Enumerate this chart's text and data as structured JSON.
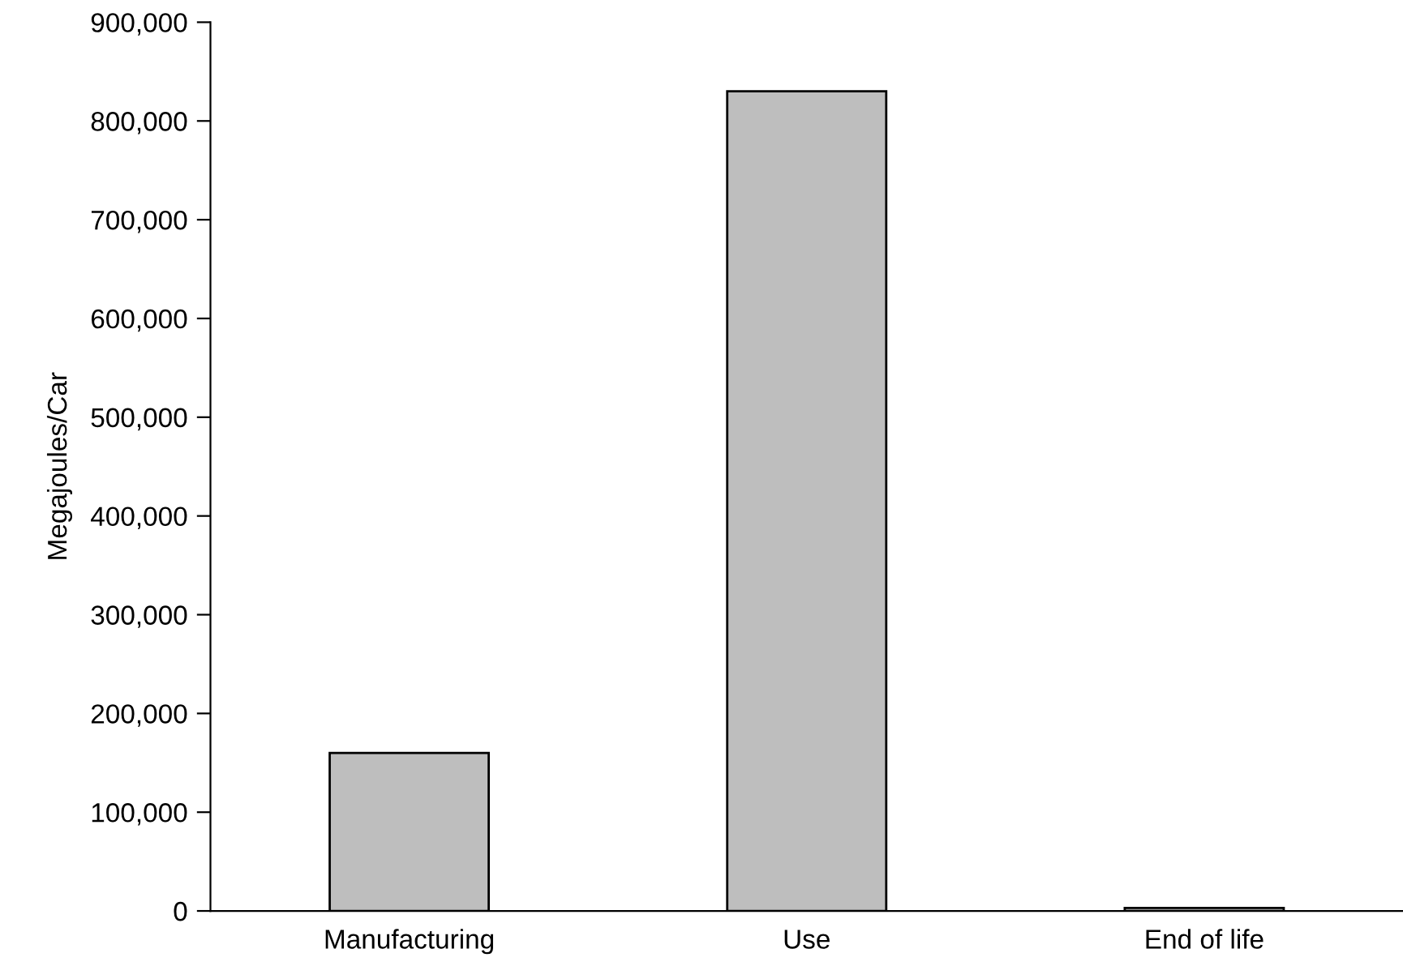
{
  "chart_data": {
    "type": "bar",
    "ylabel": "Megajoules/Car",
    "categories": [
      "Manufacturing",
      "Use",
      "End of life"
    ],
    "values": [
      160000,
      830000,
      3000
    ],
    "color": "#bebebe",
    "ylim": [
      0,
      900000
    ],
    "yticks": [
      {
        "value": 0,
        "label": "0"
      },
      {
        "value": 100000,
        "label": "100,000"
      },
      {
        "value": 200000,
        "label": "200,000"
      },
      {
        "value": 300000,
        "label": "300,000"
      },
      {
        "value": 400000,
        "label": "400,000"
      },
      {
        "value": 500000,
        "label": "500,000"
      },
      {
        "value": 600000,
        "label": "600,000"
      },
      {
        "value": 700000,
        "label": "700,000"
      },
      {
        "value": 800000,
        "label": "800,000"
      },
      {
        "value": 900000,
        "label": "900,000"
      }
    ],
    "grid": false,
    "legend": false
  }
}
